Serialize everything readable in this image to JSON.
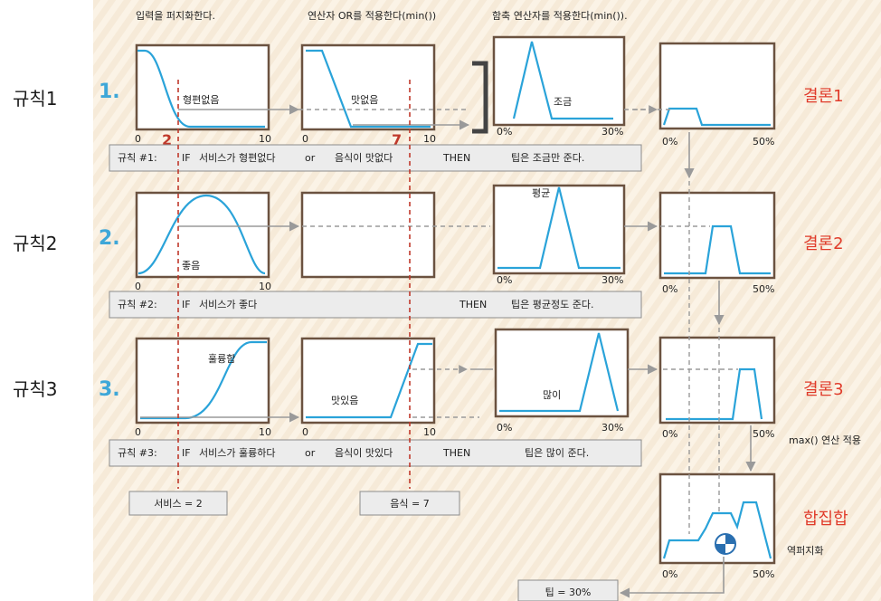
{
  "headers": {
    "fuzzify": "입력을 퍼지화한다.",
    "or_op": "연산자 OR를 적용한다(min())",
    "implication": "함축 연산자를 적용한다(min())."
  },
  "rows": [
    {
      "label": "규칙1",
      "number": "1.",
      "conclusion": "결론1",
      "service_mf": "형편없음",
      "food_mf": "맛없음",
      "tip_mf": "조금",
      "rule_text": {
        "id": "규칙 #1:",
        "if": "IF",
        "cond1": "서비스가 형편없다",
        "or": "or",
        "cond2": "음식이 맛없다",
        "then": "THEN",
        "result": "팁은 조금만 준다."
      }
    },
    {
      "label": "규칙2",
      "number": "2.",
      "conclusion": "결론2",
      "service_mf": "좋음",
      "food_mf": "",
      "tip_mf": "평균",
      "rule_text": {
        "id": "규칙 #2:",
        "if": "IF",
        "cond1": "서비스가 좋다",
        "or": "",
        "cond2": "",
        "then": "THEN",
        "result": "팁은 평균정도 준다."
      }
    },
    {
      "label": "규칙3",
      "number": "3.",
      "conclusion": "결론3",
      "service_mf": "훌륭함",
      "food_mf": "맛있음",
      "tip_mf": "많이",
      "rule_text": {
        "id": "규칙 #3:",
        "if": "IF",
        "cond1": "서비스가 훌륭하다",
        "or": "or",
        "cond2": "음식이 맛있다",
        "then": "THEN",
        "result": "팁은 많이 준다."
      }
    }
  ],
  "axes": {
    "input_min": "0",
    "input_max": "10",
    "output_min": "0%",
    "output_max_tip": "30%",
    "output_max_concl": "50%"
  },
  "inputs": {
    "service_value": "2",
    "food_value": "7",
    "service_box": "서비스 = 2",
    "food_box": "음식 = 7"
  },
  "aggregation": {
    "max_label": "max() 연산 적용",
    "aggregate_label": "합집합",
    "defuzz_label": "역퍼지화",
    "result_box": "팁 = 30%"
  },
  "colors": {
    "accent_blue": "#3ea7d8",
    "curve_blue": "#2aa3d9",
    "red": "#e03b2a",
    "box_border": "#6b5240",
    "bg_stripe": "#f6ead8"
  }
}
